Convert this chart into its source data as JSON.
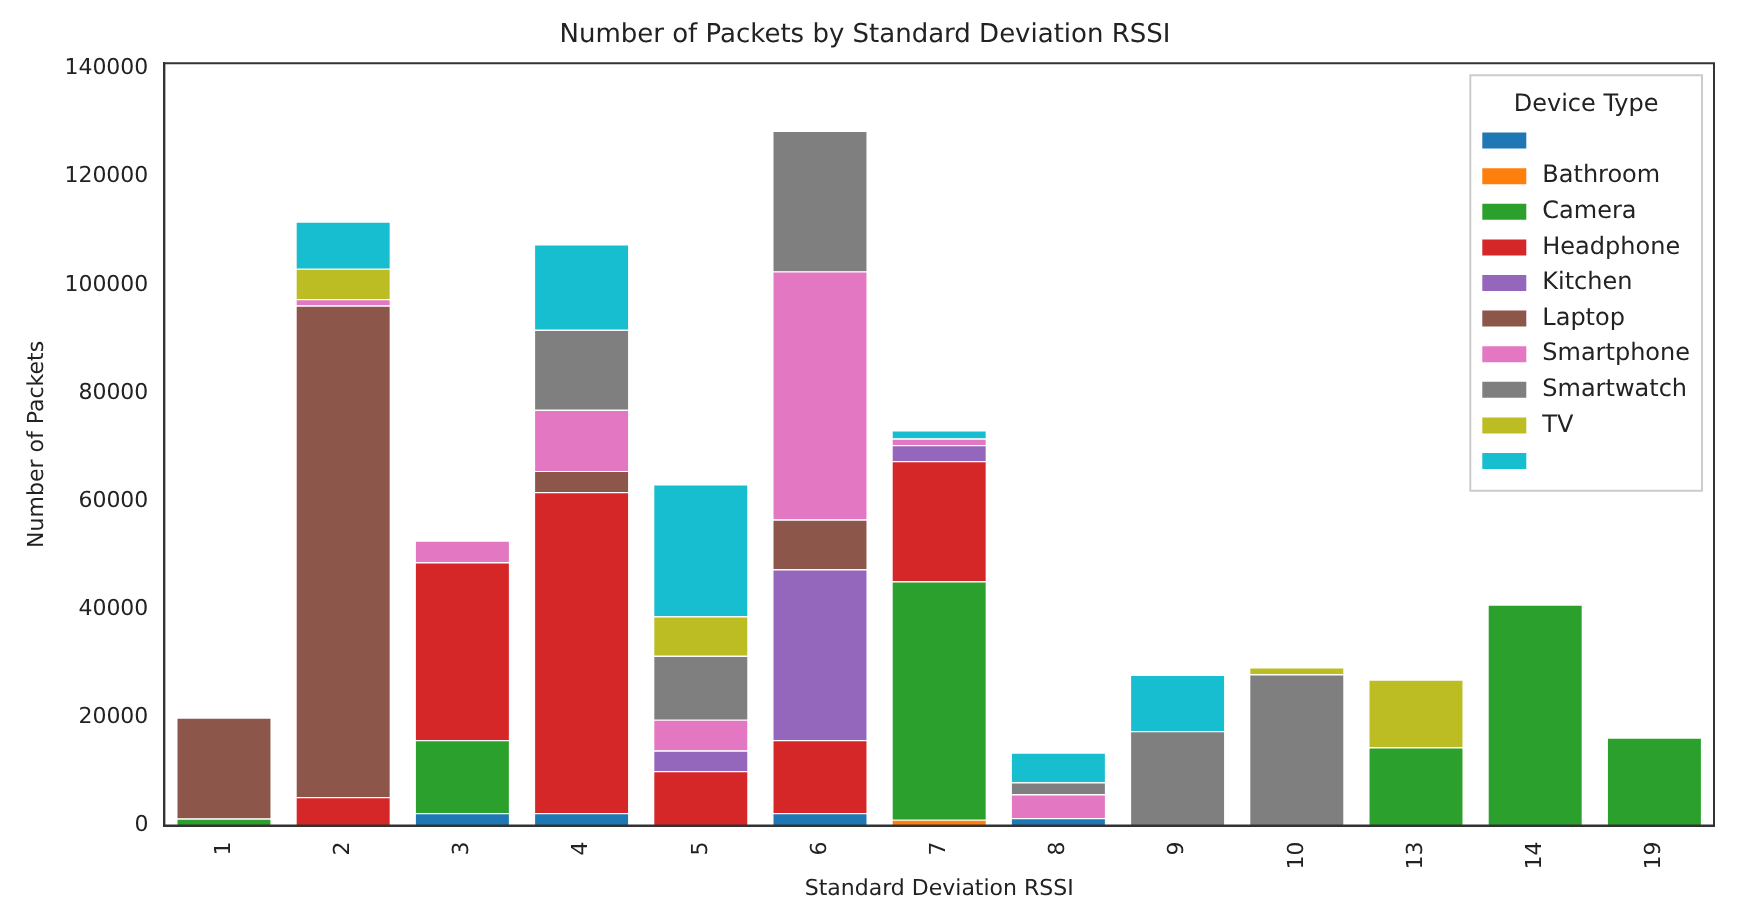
{
  "chart_data": {
    "type": "bar",
    "title": "Number of Packets by Standard Deviation RSSI",
    "xlabel": "Standard Deviation RSSI",
    "ylabel": "Number of Packets",
    "legend_title": "Device Type",
    "legend": "top right",
    "stacked": true,
    "grid": false,
    "categories": [
      "1",
      "2",
      "3",
      "4",
      "5",
      "6",
      "7",
      "8",
      "9",
      "10",
      "13",
      "14",
      "19"
    ],
    "ylim": [
      0,
      141000
    ],
    "yticks": [
      0,
      20000,
      40000,
      60000,
      80000,
      100000,
      120000,
      140000
    ],
    "series": [
      {
        "color": "#1f77b4",
        "values": [
          null,
          null,
          2300,
          2300,
          null,
          2300,
          null,
          1400,
          null,
          null,
          null,
          null,
          null
        ]
      },
      {
        "name": "Bathroom",
        "color": "#ff7f0e",
        "values": [
          null,
          null,
          null,
          null,
          null,
          null,
          1100,
          null,
          null,
          null,
          null,
          null,
          null
        ]
      },
      {
        "name": "Camera",
        "color": "#2ca02c",
        "values": [
          1300,
          null,
          13500,
          null,
          null,
          null,
          44100,
          null,
          null,
          null,
          14500,
          40900,
          16300
        ]
      },
      {
        "name": "Headphone",
        "color": "#d62728",
        "values": [
          null,
          5300,
          32900,
          59400,
          10100,
          13500,
          22200,
          null,
          null,
          null,
          null,
          null,
          null
        ]
      },
      {
        "name": "Kitchen",
        "color": "#9467bd",
        "values": [
          null,
          null,
          null,
          null,
          3800,
          31600,
          3000,
          null,
          null,
          null,
          null,
          null,
          null
        ]
      },
      {
        "name": "Laptop",
        "color": "#8c564b",
        "values": [
          18700,
          90900,
          null,
          3900,
          null,
          9200,
          null,
          null,
          null,
          null,
          null,
          null,
          null
        ]
      },
      {
        "name": "Smartphone",
        "color": "#e377c2",
        "values": [
          null,
          1200,
          4000,
          11300,
          5700,
          45900,
          1200,
          4400,
          null,
          null,
          null,
          null,
          null
        ]
      },
      {
        "name": "Smartwatch",
        "color": "#7f7f7f",
        "values": [
          null,
          null,
          null,
          14800,
          11800,
          26000,
          null,
          2200,
          17500,
          28000,
          null,
          null,
          null
        ]
      },
      {
        "name": "TV",
        "color": "#bcbd22",
        "values": [
          null,
          5600,
          null,
          null,
          7300,
          null,
          null,
          null,
          null,
          1300,
          12500,
          null,
          null
        ]
      },
      {
        "color": "#17becf",
        "values": [
          null,
          8700,
          null,
          15800,
          24400,
          null,
          1500,
          5500,
          10400,
          null,
          null,
          null,
          null
        ]
      }
    ]
  }
}
